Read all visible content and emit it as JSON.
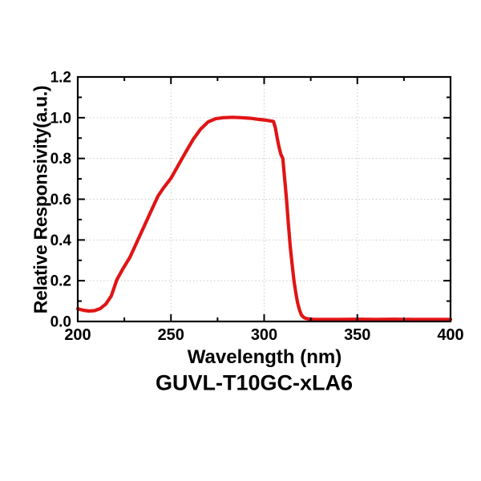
{
  "figure": {
    "caption": "GUVL-T10GC-xLA6"
  },
  "chart_data": {
    "type": "line",
    "title": "GUVL-T10GC-xLA6",
    "xlabel": "Wavelength (nm)",
    "ylabel": "Relative Responsivity(a.u.)",
    "xlim": [
      200,
      400
    ],
    "ylim": [
      0,
      1.2
    ],
    "x_major_ticks": [
      200,
      250,
      300,
      350,
      400
    ],
    "x_minor_ticks": [
      225,
      275,
      325,
      375
    ],
    "y_major_ticks": [
      0.0,
      0.2,
      0.4,
      0.6,
      0.8,
      1.0,
      1.2
    ],
    "y_minor_ticks": [
      0.1,
      0.3,
      0.5,
      0.7,
      0.9,
      1.1
    ],
    "x_gridlines": [
      250,
      300,
      350
    ],
    "y_gridlines": [
      0.2,
      0.4,
      0.6,
      0.8,
      1.0
    ],
    "grid_style": "dotted",
    "legend_position": "none",
    "colors": {
      "curve": "#e11414",
      "axis": "#000000",
      "text": "#000000",
      "gridline": "#c9c9c9",
      "background": "#ffffff"
    },
    "series": [
      {
        "name": "relative-responsivity",
        "color": "#e11414",
        "points": [
          [
            200,
            0.062
          ],
          [
            203,
            0.055
          ],
          [
            206,
            0.051
          ],
          [
            209,
            0.053
          ],
          [
            212,
            0.063
          ],
          [
            215,
            0.085
          ],
          [
            218,
            0.125
          ],
          [
            221,
            0.205
          ],
          [
            224,
            0.255
          ],
          [
            228,
            0.315
          ],
          [
            232,
            0.395
          ],
          [
            236,
            0.475
          ],
          [
            240,
            0.555
          ],
          [
            243,
            0.615
          ],
          [
            246,
            0.655
          ],
          [
            250,
            0.703
          ],
          [
            254,
            0.768
          ],
          [
            258,
            0.832
          ],
          [
            262,
            0.895
          ],
          [
            266,
            0.945
          ],
          [
            270,
            0.98
          ],
          [
            274,
            0.995
          ],
          [
            278,
            1.0
          ],
          [
            283,
            1.002
          ],
          [
            288,
            1.0
          ],
          [
            293,
            0.997
          ],
          [
            297,
            0.992
          ],
          [
            301,
            0.988
          ],
          [
            305,
            0.982
          ],
          [
            306,
            0.95
          ],
          [
            307,
            0.9
          ],
          [
            308,
            0.855
          ],
          [
            309,
            0.82
          ],
          [
            310,
            0.8
          ],
          [
            311,
            0.7
          ],
          [
            312,
            0.6
          ],
          [
            313,
            0.48
          ],
          [
            314,
            0.37
          ],
          [
            315,
            0.28
          ],
          [
            316,
            0.2
          ],
          [
            317,
            0.14
          ],
          [
            318,
            0.09
          ],
          [
            319,
            0.055
          ],
          [
            320,
            0.032
          ],
          [
            321,
            0.022
          ],
          [
            322,
            0.016
          ],
          [
            324,
            0.012
          ],
          [
            327,
            0.01
          ],
          [
            332,
            0.01
          ],
          [
            340,
            0.01
          ],
          [
            350,
            0.011
          ],
          [
            360,
            0.01
          ],
          [
            370,
            0.011
          ],
          [
            380,
            0.01
          ],
          [
            390,
            0.01
          ],
          [
            400,
            0.01
          ]
        ]
      }
    ]
  }
}
